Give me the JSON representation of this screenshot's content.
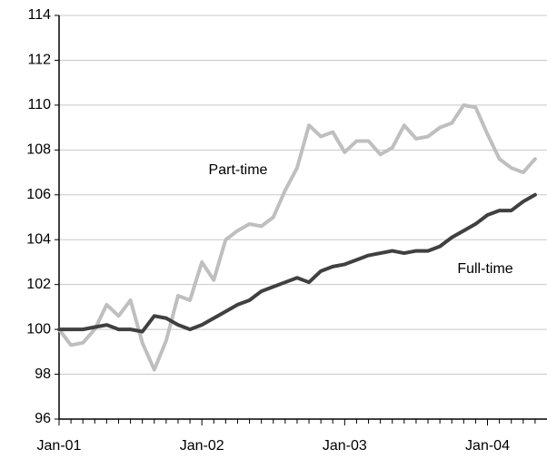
{
  "chart_data": {
    "type": "line",
    "categories": [
      "Jan-01",
      null,
      null,
      null,
      null,
      null,
      null,
      null,
      null,
      null,
      null,
      null,
      "Jan-02",
      null,
      null,
      null,
      null,
      null,
      null,
      null,
      null,
      null,
      null,
      null,
      "Jan-03",
      null,
      null,
      null,
      null,
      null,
      null,
      null,
      null,
      null,
      null,
      null,
      "Jan-04",
      null,
      null,
      null,
      null
    ],
    "series": [
      {
        "name": "Part-time",
        "color": "#bfbfbf",
        "values": [
          100.0,
          99.3,
          99.4,
          100.0,
          101.1,
          100.6,
          101.3,
          99.4,
          98.2,
          99.5,
          101.5,
          101.3,
          103.0,
          102.2,
          104.0,
          104.4,
          104.7,
          104.6,
          105.0,
          106.2,
          107.2,
          109.1,
          108.6,
          108.8,
          107.9,
          108.4,
          108.4,
          107.8,
          108.1,
          109.1,
          108.5,
          108.6,
          109.0,
          109.2,
          110.0,
          109.9,
          108.7,
          107.6,
          107.2,
          107.0,
          107.6
        ]
      },
      {
        "name": "Full-time",
        "color": "#404040",
        "values": [
          100.0,
          100.0,
          100.0,
          100.1,
          100.2,
          100.0,
          100.0,
          99.9,
          100.6,
          100.5,
          100.2,
          100.0,
          100.2,
          100.5,
          100.8,
          101.1,
          101.3,
          101.7,
          101.9,
          102.1,
          102.3,
          102.1,
          102.6,
          102.8,
          102.9,
          103.1,
          103.3,
          103.4,
          103.5,
          103.4,
          103.5,
          103.5,
          103.7,
          104.1,
          104.4,
          104.7,
          105.1,
          105.3,
          105.3,
          105.7,
          106.0
        ]
      }
    ],
    "ylim": [
      96,
      114
    ],
    "yticks": [
      96,
      98,
      100,
      102,
      104,
      106,
      108,
      110,
      112,
      114
    ],
    "grid": true
  }
}
